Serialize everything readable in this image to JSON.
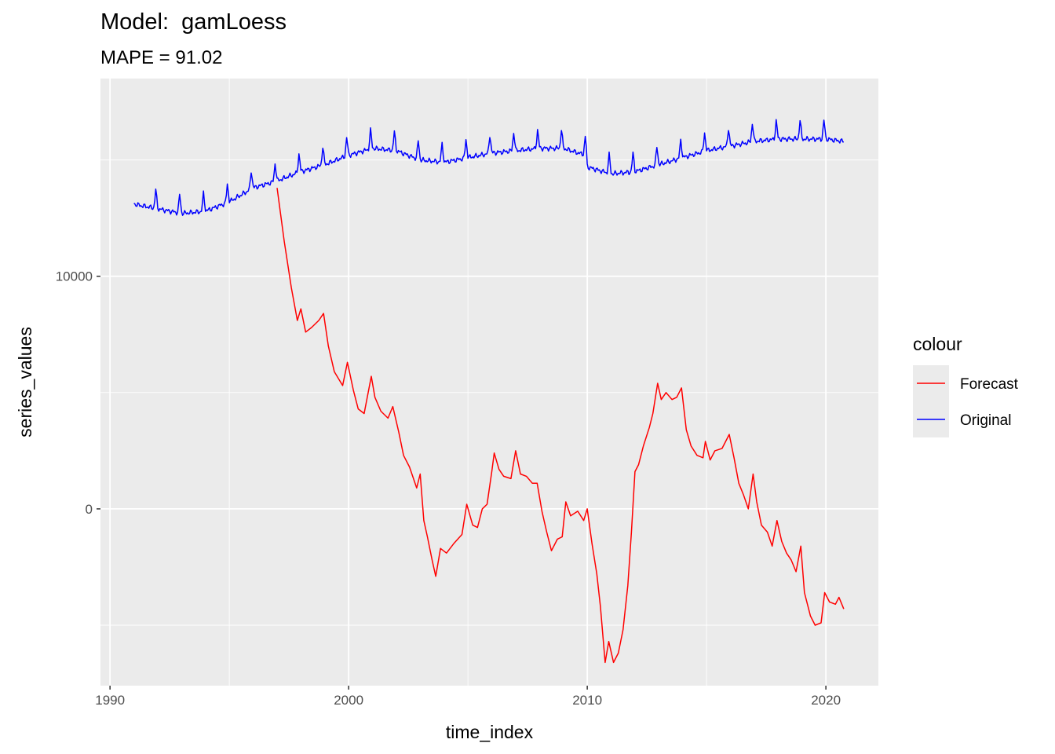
{
  "chart_data": {
    "type": "line",
    "title": "Model:  gamLoess",
    "subtitle": "MAPE = 91.02",
    "xlabel": "time_index",
    "ylabel": "series_values",
    "xlim": [
      1989.6,
      2022.2
    ],
    "ylim": [
      -7600,
      18500
    ],
    "x_ticks": [
      1990,
      2000,
      2010,
      2020
    ],
    "y_ticks": [
      0,
      10000
    ],
    "grid": true,
    "legend": {
      "title": "colour",
      "position": "right"
    },
    "series": [
      {
        "name": "Forecast",
        "color": "#ff0000",
        "points": [
          [
            1997.0,
            13800
          ],
          [
            1997.3,
            11500
          ],
          [
            1997.6,
            9500
          ],
          [
            1997.85,
            8100
          ],
          [
            1998.0,
            8600
          ],
          [
            1998.2,
            7600
          ],
          [
            1998.45,
            7800
          ],
          [
            1998.75,
            8100
          ],
          [
            1998.95,
            8400
          ],
          [
            1999.15,
            7000
          ],
          [
            1999.4,
            5900
          ],
          [
            1999.75,
            5300
          ],
          [
            1999.95,
            6300
          ],
          [
            2000.2,
            5100
          ],
          [
            2000.4,
            4300
          ],
          [
            2000.65,
            4100
          ],
          [
            2000.95,
            5700
          ],
          [
            2001.1,
            4800
          ],
          [
            2001.35,
            4200
          ],
          [
            2001.65,
            3900
          ],
          [
            2001.85,
            4400
          ],
          [
            2002.1,
            3300
          ],
          [
            2002.3,
            2300
          ],
          [
            2002.55,
            1800
          ],
          [
            2002.85,
            900
          ],
          [
            2003.0,
            1500
          ],
          [
            2003.15,
            -500
          ],
          [
            2003.3,
            -1200
          ],
          [
            2003.5,
            -2200
          ],
          [
            2003.65,
            -2900
          ],
          [
            2003.85,
            -1700
          ],
          [
            2004.1,
            -1900
          ],
          [
            2004.4,
            -1500
          ],
          [
            2004.75,
            -1100
          ],
          [
            2004.95,
            200
          ],
          [
            2005.2,
            -700
          ],
          [
            2005.4,
            -800
          ],
          [
            2005.6,
            0
          ],
          [
            2005.8,
            200
          ],
          [
            2006.0,
            1600
          ],
          [
            2006.1,
            2400
          ],
          [
            2006.3,
            1700
          ],
          [
            2006.5,
            1400
          ],
          [
            2006.8,
            1300
          ],
          [
            2007.0,
            2500
          ],
          [
            2007.2,
            1500
          ],
          [
            2007.45,
            1400
          ],
          [
            2007.7,
            1100
          ],
          [
            2007.9,
            1100
          ],
          [
            2008.1,
            -100
          ],
          [
            2008.3,
            -1000
          ],
          [
            2008.5,
            -1800
          ],
          [
            2008.75,
            -1300
          ],
          [
            2008.95,
            -1200
          ],
          [
            2009.1,
            300
          ],
          [
            2009.3,
            -300
          ],
          [
            2009.6,
            -100
          ],
          [
            2009.85,
            -500
          ],
          [
            2010.0,
            0
          ],
          [
            2010.2,
            -1500
          ],
          [
            2010.4,
            -2800
          ],
          [
            2010.55,
            -4200
          ],
          [
            2010.75,
            -6600
          ],
          [
            2010.9,
            -5700
          ],
          [
            2011.1,
            -6600
          ],
          [
            2011.3,
            -6200
          ],
          [
            2011.5,
            -5200
          ],
          [
            2011.7,
            -3300
          ],
          [
            2011.85,
            -1000
          ],
          [
            2012.0,
            1600
          ],
          [
            2012.15,
            1900
          ],
          [
            2012.35,
            2700
          ],
          [
            2012.6,
            3500
          ],
          [
            2012.75,
            4100
          ],
          [
            2012.95,
            5400
          ],
          [
            2013.1,
            4700
          ],
          [
            2013.3,
            5000
          ],
          [
            2013.55,
            4700
          ],
          [
            2013.75,
            4800
          ],
          [
            2013.95,
            5200
          ],
          [
            2014.15,
            3400
          ],
          [
            2014.35,
            2700
          ],
          [
            2014.6,
            2300
          ],
          [
            2014.85,
            2200
          ],
          [
            2014.95,
            2900
          ],
          [
            2015.15,
            2100
          ],
          [
            2015.35,
            2500
          ],
          [
            2015.65,
            2600
          ],
          [
            2015.95,
            3200
          ],
          [
            2016.15,
            2200
          ],
          [
            2016.35,
            1100
          ],
          [
            2016.55,
            600
          ],
          [
            2016.75,
            0
          ],
          [
            2016.95,
            1500
          ],
          [
            2017.1,
            300
          ],
          [
            2017.3,
            -700
          ],
          [
            2017.55,
            -1000
          ],
          [
            2017.75,
            -1600
          ],
          [
            2017.95,
            -500
          ],
          [
            2018.15,
            -1400
          ],
          [
            2018.35,
            -1900
          ],
          [
            2018.55,
            -2200
          ],
          [
            2018.75,
            -2700
          ],
          [
            2018.95,
            -1600
          ],
          [
            2019.1,
            -3600
          ],
          [
            2019.35,
            -4600
          ],
          [
            2019.55,
            -5000
          ],
          [
            2019.8,
            -4900
          ],
          [
            2019.95,
            -3600
          ],
          [
            2020.15,
            -4000
          ],
          [
            2020.4,
            -4100
          ],
          [
            2020.55,
            -3800
          ],
          [
            2020.75,
            -4300
          ]
        ]
      },
      {
        "name": "Original",
        "color": "#0000ff",
        "base": [
          [
            1991.0,
            13100
          ],
          [
            1992.0,
            12900
          ],
          [
            1993.0,
            12700
          ],
          [
            1994.0,
            12800
          ],
          [
            1995.0,
            13200
          ],
          [
            1996.0,
            13800
          ],
          [
            1997.0,
            14100
          ],
          [
            1998.0,
            14500
          ],
          [
            1999.0,
            14800
          ],
          [
            2000.0,
            15200
          ],
          [
            2001.0,
            15500
          ],
          [
            2002.0,
            15400
          ],
          [
            2003.0,
            15000
          ],
          [
            2004.0,
            14900
          ],
          [
            2005.0,
            15100
          ],
          [
            2006.0,
            15300
          ],
          [
            2007.0,
            15400
          ],
          [
            2008.0,
            15500
          ],
          [
            2009.0,
            15500
          ],
          [
            2009.95,
            15200
          ],
          [
            2010.0,
            14700
          ],
          [
            2011.0,
            14400
          ],
          [
            2012.0,
            14500
          ],
          [
            2013.0,
            14800
          ],
          [
            2014.0,
            15100
          ],
          [
            2015.0,
            15400
          ],
          [
            2016.0,
            15600
          ],
          [
            2017.0,
            15800
          ],
          [
            2018.0,
            15900
          ],
          [
            2019.0,
            15900
          ],
          [
            2020.0,
            15900
          ],
          [
            2020.75,
            15800
          ]
        ],
        "peak_amplitude": 800
      }
    ]
  }
}
